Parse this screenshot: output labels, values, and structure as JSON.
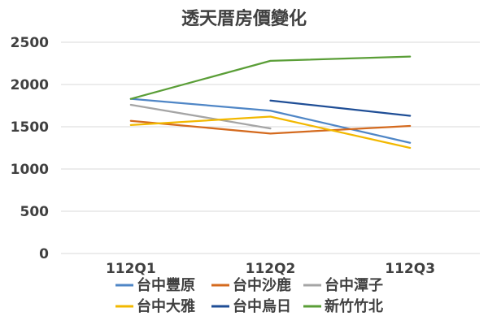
{
  "chart_data": {
    "type": "line",
    "title": "透天厝房價變化",
    "categories": [
      "112Q1",
      "112Q2",
      "112Q3"
    ],
    "ylim": [
      0,
      2500
    ],
    "y_ticks": [
      0,
      500,
      1000,
      1500,
      2000,
      2500
    ],
    "y_tick_labels": [
      "0",
      "500",
      "1000",
      "1500",
      "2000",
      "2500"
    ],
    "grid": true,
    "legend_position": "bottom",
    "series": [
      {
        "name": "台中豐原",
        "color": "#4f86c6",
        "values": [
          1830,
          1690,
          1310
        ]
      },
      {
        "name": "台中沙鹿",
        "color": "#d46a1e",
        "values": [
          1570,
          1420,
          1510
        ]
      },
      {
        "name": "台中潭子",
        "color": "#a5a5a5",
        "values": [
          1760,
          1480,
          null
        ]
      },
      {
        "name": "台中大雅",
        "color": "#f2b800",
        "values": [
          1520,
          1620,
          1250
        ]
      },
      {
        "name": "台中烏日",
        "color": "#1f4e96",
        "values": [
          null,
          1810,
          1630
        ]
      },
      {
        "name": "新竹竹北",
        "color": "#5a9e37",
        "values": [
          1830,
          2280,
          2330
        ]
      }
    ]
  }
}
